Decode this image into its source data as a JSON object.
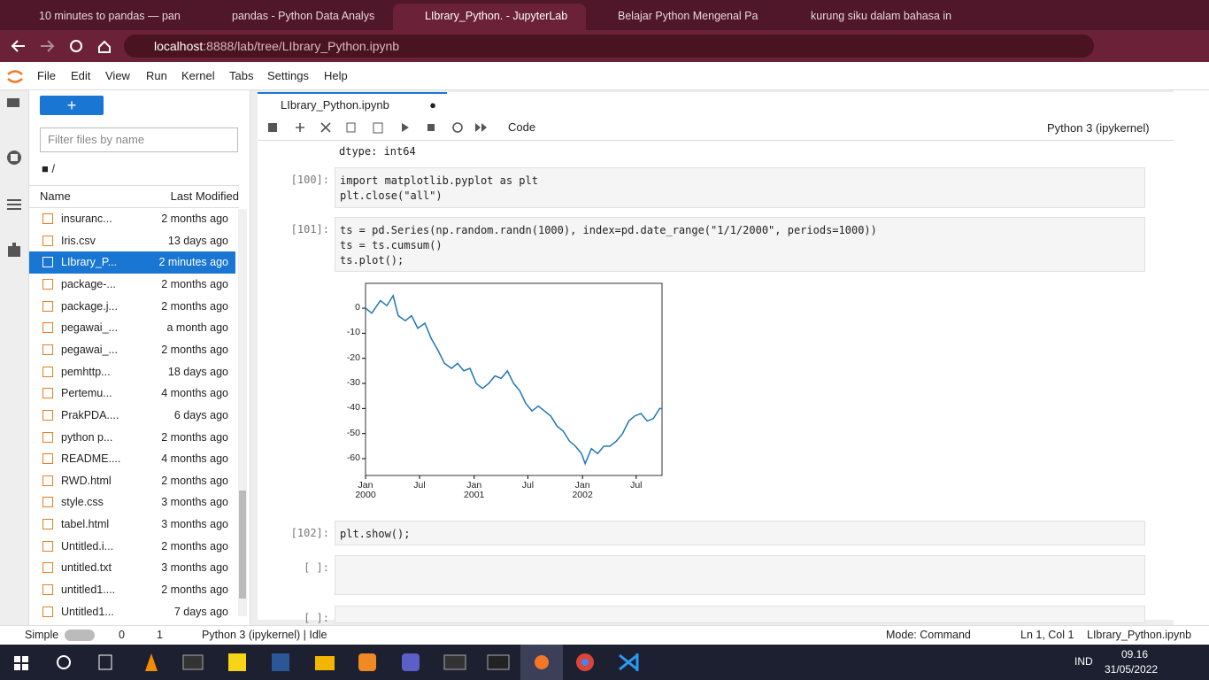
{
  "browser": {
    "tabs": [
      "10 minutes to pandas — pan",
      "pandas - Python Data Analys",
      "LIbrary_Python. - JupyterLab",
      "Belajar Python Mengenal Pa",
      "kurung siku dalam bahasa in"
    ],
    "active_tab": 2,
    "url_host": "localhost",
    "url_rest": ":8888/lab/tree/LIbrary_Python.ipynb"
  },
  "menu": [
    "File",
    "Edit",
    "View",
    "Run",
    "Kernel",
    "Tabs",
    "Settings",
    "Help"
  ],
  "file_browser": {
    "filter_placeholder": "Filter files by name",
    "path": "/",
    "col_name": "Name",
    "col_modified": "Last Modified",
    "selected": 2,
    "files": [
      {
        "name": "insuranc...",
        "modified": "2 months ago"
      },
      {
        "name": "Iris.csv",
        "modified": "13 days ago"
      },
      {
        "name": "LIbrary_P...",
        "modified": "2 minutes ago"
      },
      {
        "name": "package-...",
        "modified": "2 months ago"
      },
      {
        "name": "package.j...",
        "modified": "2 months ago"
      },
      {
        "name": "pegawai_...",
        "modified": "a month ago"
      },
      {
        "name": "pegawai_...",
        "modified": "2 months ago"
      },
      {
        "name": "pemhttp...",
        "modified": "18 days ago"
      },
      {
        "name": "Pertemu...",
        "modified": "4 months ago"
      },
      {
        "name": "PrakPDA....",
        "modified": "6 days ago"
      },
      {
        "name": "python p...",
        "modified": "2 months ago"
      },
      {
        "name": "README....",
        "modified": "4 months ago"
      },
      {
        "name": "RWD.html",
        "modified": "2 months ago"
      },
      {
        "name": "style.css",
        "modified": "3 months ago"
      },
      {
        "name": "tabel.html",
        "modified": "3 months ago"
      },
      {
        "name": "Untitled.i...",
        "modified": "2 months ago"
      },
      {
        "name": "untitled.txt",
        "modified": "3 months ago"
      },
      {
        "name": "untitled1....",
        "modified": "2 months ago"
      },
      {
        "name": "Untitled1...",
        "modified": "7 days ago"
      }
    ]
  },
  "notebook": {
    "tab": "LIbrary_Python.ipynb",
    "cell_type": "Code",
    "kernel": "Python 3 (ipykernel)",
    "output_prev": "dtype: int64",
    "cells": [
      {
        "prompt": "[100]:",
        "lines": [
          "import matplotlib.pyplot as plt",
          "plt.close(\"all\")"
        ]
      },
      {
        "prompt": "[101]:",
        "lines": [
          "ts = pd.Series(np.random.randn(1000), index=pd.date_range(\"1/1/2000\", periods=1000))",
          "ts = ts.cumsum()",
          "ts.plot();"
        ]
      },
      {
        "prompt": "[102]:",
        "lines": [
          "plt.show();"
        ]
      },
      {
        "prompt": "[ ]:",
        "lines": []
      },
      {
        "prompt": "[ ]:",
        "lines": []
      }
    ]
  },
  "chart_data": {
    "type": "line",
    "x": [
      0,
      21,
      50,
      72,
      93,
      110,
      134,
      155,
      176,
      200,
      221,
      245,
      266,
      290,
      310,
      331,
      352,
      373,
      394,
      415,
      436,
      457,
      478,
      499,
      520,
      540,
      561,
      582,
      603,
      624,
      645,
      666,
      687,
      707,
      728,
      740,
      761,
      782,
      803,
      824,
      845,
      866,
      887,
      907,
      928,
      949,
      970,
      991,
      999
    ],
    "series": [
      {
        "name": null,
        "color": "#1f77b4",
        "values": [
          0,
          -2,
          3,
          1,
          5,
          -3,
          -5,
          -3,
          -8,
          -6,
          -12,
          -17,
          -22,
          -24,
          -22,
          -25,
          -24,
          -30,
          -32,
          -30,
          -27,
          -28,
          -25,
          -30,
          -33,
          -38,
          -41,
          -39,
          -41,
          -43,
          -47,
          -49,
          -53,
          -55,
          -58,
          -62,
          -56,
          -58,
          -55,
          -55,
          -53,
          -50,
          -45,
          -43,
          -42,
          -45,
          -44,
          -40,
          -40
        ]
      }
    ],
    "xlim": [
      0,
      999
    ],
    "ylim": [
      -66.7,
      9.9
    ],
    "xticks": [
      {
        "value": 0,
        "label": "Jan\n2000"
      },
      {
        "value": 182,
        "label": "Jul"
      },
      {
        "value": 366,
        "label": "Jan\n2001"
      },
      {
        "value": 547,
        "label": "Jul"
      },
      {
        "value": 731,
        "label": "Jan\n2002"
      },
      {
        "value": 912,
        "label": "Jul"
      }
    ],
    "yticks": [
      0,
      -10,
      -20,
      -30,
      -40,
      -50,
      -60
    ],
    "grid": false
  },
  "status": {
    "mode_label": "Simple",
    "zero": "0",
    "one": "1",
    "kernel": "Python 3 (ipykernel) | Idle",
    "mode": "Mode: Command",
    "position": "Ln 1, Col 1",
    "file": "LIbrary_Python.ipynb"
  },
  "taskbar": {
    "lang": "IND",
    "time": "09.16",
    "date": "31/05/2022"
  }
}
